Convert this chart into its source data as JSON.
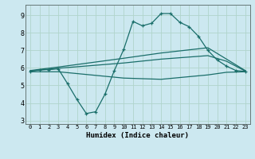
{
  "xlabel": "Humidex (Indice chaleur)",
  "background_color": "#cce8f0",
  "grid_color": "#b0d4cc",
  "line_color": "#1a6e6a",
  "xlim": [
    -0.5,
    23.5
  ],
  "ylim": [
    2.8,
    9.6
  ],
  "yticks": [
    3,
    4,
    5,
    6,
    7,
    8,
    9
  ],
  "xticks": [
    0,
    1,
    2,
    3,
    4,
    5,
    6,
    7,
    8,
    9,
    10,
    11,
    12,
    13,
    14,
    15,
    16,
    17,
    18,
    19,
    20,
    21,
    22,
    23
  ],
  "series": {
    "main": {
      "x": [
        0,
        1,
        2,
        3,
        4,
        5,
        6,
        7,
        8,
        9,
        10,
        11,
        12,
        13,
        14,
        15,
        16,
        17,
        18,
        19,
        20,
        21,
        22,
        23
      ],
      "y": [
        5.8,
        5.9,
        5.9,
        5.95,
        5.1,
        4.2,
        3.4,
        3.5,
        4.5,
        5.85,
        7.05,
        8.65,
        8.4,
        8.55,
        9.1,
        9.1,
        8.6,
        8.35,
        7.8,
        7.0,
        6.45,
        6.1,
        5.85,
        5.8
      ]
    },
    "upper": {
      "x": [
        0,
        3,
        10,
        14,
        19,
        21,
        23
      ],
      "y": [
        5.85,
        6.05,
        6.55,
        6.85,
        7.15,
        6.5,
        5.85
      ]
    },
    "middle": {
      "x": [
        0,
        3,
        10,
        14,
        19,
        21,
        23
      ],
      "y": [
        5.82,
        5.98,
        6.28,
        6.5,
        6.7,
        6.38,
        5.82
      ]
    },
    "lower": {
      "x": [
        0,
        3,
        10,
        14,
        19,
        21,
        23
      ],
      "y": [
        5.78,
        5.78,
        5.42,
        5.35,
        5.6,
        5.75,
        5.78
      ]
    }
  }
}
